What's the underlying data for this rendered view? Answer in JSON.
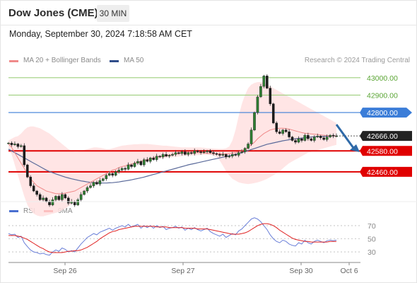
{
  "header": {
    "title": "Dow Jones (CME)",
    "timeframe": "30 MIN",
    "datetime": "Monday, September 30, 2024 7:18:58 AM CET"
  },
  "legend": {
    "ma20_bb": "MA 20 + Bollinger Bands",
    "ma50": "MA 50",
    "credit": "Research © 2024 Trading Central",
    "rsi": "RSI",
    "ma9": "9MA"
  },
  "colors": {
    "ma20": "#f08a8a",
    "bollinger_fill": "#ffe0e0",
    "ma50": "#5a6a9a",
    "resistance_green": "#9dcf7e",
    "pivot_blue": "#3b7dd8",
    "support_red": "#e00000",
    "last_price": "#222222",
    "candle": "#2e7d32",
    "rsi": "#6a7fd8",
    "rsi_ma": "#e02020",
    "arrow": "#2f6aa8"
  },
  "chart_data": [
    {
      "type": "candlestick",
      "title": "Dow Jones (CME)",
      "x_ticks": [
        "Sep 26",
        "Sep 27",
        "Sep 30",
        "Oct 6"
      ],
      "ylim": [
        42350,
        43060
      ],
      "levels": [
        {
          "value": 43000,
          "label": "43000.00",
          "kind": "resistance"
        },
        {
          "value": 42900,
          "label": "42900.00",
          "kind": "resistance"
        },
        {
          "value": 42800,
          "label": "42800.00",
          "kind": "pivot"
        },
        {
          "value": 42666,
          "label": "42666.00",
          "kind": "last"
        },
        {
          "value": 42580,
          "label": "42580.00",
          "kind": "support"
        },
        {
          "value": 42460,
          "label": "42460.00",
          "kind": "support"
        }
      ],
      "close": [
        42625,
        42615,
        42620,
        42605,
        42610,
        42500,
        42430,
        42380,
        42350,
        42330,
        42300,
        42310,
        42290,
        42270,
        42300,
        42320,
        42300,
        42330,
        42310,
        42280,
        42290,
        42270,
        42300,
        42330,
        42350,
        42370,
        42380,
        42400,
        42390,
        42410,
        42420,
        42440,
        42450,
        42440,
        42460,
        42470,
        42480,
        42475,
        42500,
        42490,
        42510,
        42520,
        42500,
        42530,
        42520,
        42540,
        42530,
        42550,
        42545,
        42560,
        42550,
        42555,
        42560,
        42570,
        42565,
        42575,
        42560,
        42570,
        42565,
        42580,
        42575,
        42570,
        42575,
        42580,
        42570,
        42565,
        42560,
        42555,
        42560,
        42545,
        42550,
        42560,
        42555,
        42570,
        42575,
        42595,
        42620,
        42700,
        42800,
        42890,
        42950,
        43010,
        42940,
        42850,
        42740,
        42690,
        42680,
        42700,
        42690,
        42660,
        42640,
        42630,
        42650,
        42640,
        42670,
        42650,
        42640,
        42660,
        42665,
        42655,
        42645,
        42660,
        42670,
        42665,
        42666
      ],
      "ma20": [
        42620,
        42600,
        42570,
        42540,
        42510,
        42480,
        42450,
        42420,
        42400,
        42380,
        42370,
        42360,
        42350,
        42345,
        42340,
        42335,
        42335,
        42335,
        42338,
        42342,
        42346,
        42350,
        42360,
        42370,
        42380,
        42390,
        42400,
        42410,
        42420,
        42430,
        42440,
        42450,
        42460,
        42470,
        42475,
        42485,
        42490,
        42495,
        42500,
        42505,
        42510,
        42515,
        42520,
        42525,
        42530,
        42535,
        42540,
        42545,
        42548,
        42550,
        42553,
        42556,
        42560,
        42562,
        42565,
        42567,
        42570,
        42570,
        42570,
        42570,
        42570,
        42570,
        42568,
        42566,
        42565,
        42564,
        42563,
        42563,
        42563,
        42563,
        42565,
        42567,
        42570,
        42575,
        42580,
        42590,
        42600,
        42615,
        42630,
        42650,
        42665,
        42680,
        42690,
        42700,
        42705,
        42708,
        42710,
        42710,
        42708,
        42705,
        42700,
        42695,
        42690,
        42685,
        42682,
        42680,
        42678,
        42676,
        42674,
        42672,
        42670,
        42668,
        42667,
        42666,
        42665
      ],
      "bollinger_upper": [
        42640,
        42650,
        42660,
        42665,
        42680,
        42700,
        42715,
        42720,
        42720,
        42715,
        42710,
        42700,
        42690,
        42680,
        42665,
        42650,
        42635,
        42620,
        42605,
        42590,
        42580,
        42575,
        42575,
        42580,
        42585,
        42590,
        42595,
        42600,
        42600,
        42598,
        42595,
        42590,
        42590,
        42595,
        42600,
        42605,
        42610,
        42612,
        42615,
        42616,
        42618,
        42618,
        42620,
        42620,
        42620,
        42618,
        42616,
        42614,
        42612,
        42610,
        42610,
        42608,
        42606,
        42604,
        42602,
        42600,
        42600,
        42600,
        42600,
        42600,
        42600,
        42600,
        42598,
        42596,
        42595,
        42594,
        42593,
        42592,
        42592,
        42595,
        42605,
        42640,
        42700,
        42780,
        42850,
        42900,
        42940,
        42960,
        42970,
        42975,
        42975,
        42970,
        42960,
        42950,
        42940,
        42930,
        42920,
        42910,
        42900,
        42890,
        42880,
        42870,
        42860,
        42850,
        42840,
        42830,
        42820,
        42810,
        42800,
        42790,
        42780,
        42770,
        42760,
        42750,
        42740
      ],
      "bollinger_lower": [
        42600,
        42560,
        42500,
        42440,
        42380,
        42320,
        42270,
        42240,
        42220,
        42210,
        42205,
        42205,
        42210,
        42215,
        42220,
        42225,
        42230,
        42240,
        42250,
        42262,
        42275,
        42290,
        42305,
        42320,
        42335,
        42350,
        42365,
        42380,
        42395,
        42410,
        42420,
        42430,
        42440,
        42450,
        42460,
        42470,
        42478,
        42485,
        42490,
        42495,
        42500,
        42505,
        42510,
        42515,
        42520,
        42525,
        42530,
        42533,
        42536,
        42538,
        42540,
        42542,
        42544,
        42546,
        42548,
        42550,
        42552,
        42553,
        42554,
        42555,
        42556,
        42557,
        42558,
        42558,
        42558,
        42555,
        42545,
        42525,
        42495,
        42465,
        42440,
        42420,
        42410,
        42400,
        42395,
        42392,
        42390,
        42392,
        42396,
        42400,
        42405,
        42412,
        42420,
        42430,
        42440,
        42452,
        42465,
        42480,
        42495,
        42510,
        42520,
        42530,
        42540,
        42550,
        42560,
        42570,
        42575,
        42580,
        42585,
        42590,
        42595,
        42600,
        42605,
        42610,
        42615
      ],
      "ma50": [
        42590,
        42580,
        42570,
        42560,
        42550,
        42540,
        42530,
        42520,
        42510,
        42500,
        42490,
        42480,
        42470,
        42462,
        42455,
        42448,
        42442,
        42436,
        42430,
        42425,
        42420,
        42416,
        42412,
        42408,
        42405,
        42402,
        42400,
        42398,
        42397,
        42396,
        42396,
        42396,
        42397,
        42398,
        42400,
        42402,
        42405,
        42408,
        42411,
        42414,
        42418,
        42422,
        42426,
        42430,
        42435,
        42440,
        42445,
        42450,
        42455,
        42460,
        42465,
        42470,
        42475,
        42480,
        42485,
        42490,
        42495,
        42500,
        42504,
        42508,
        42512,
        42516,
        42520,
        42524,
        42528,
        42532,
        42536,
        42540,
        42544,
        42548,
        42552,
        42556,
        42560,
        42565,
        42570,
        42576,
        42582,
        42588,
        42594,
        42600,
        42606,
        42612,
        42618,
        42622,
        42626,
        42630,
        42634,
        42638,
        42641,
        42644,
        42647,
        42650,
        42652,
        42654,
        42656,
        42658,
        42660,
        42661,
        42662,
        42663,
        42664,
        42665,
        42666,
        42666,
        42666
      ]
    },
    {
      "type": "line",
      "title": "RSI",
      "y_ticks": [
        70,
        50,
        30
      ],
      "ylim": [
        15,
        85
      ],
      "series": [
        {
          "name": "RSI",
          "values": [
            58,
            56,
            57,
            52,
            54,
            44,
            38,
            33,
            30,
            29,
            27,
            28,
            26,
            25,
            30,
            33,
            31,
            36,
            34,
            30,
            32,
            30,
            36,
            42,
            47,
            52,
            55,
            58,
            56,
            60,
            62,
            64,
            66,
            63,
            66,
            68,
            70,
            68,
            72,
            68,
            70,
            72,
            66,
            70,
            67,
            70,
            66,
            70,
            67,
            69,
            64,
            66,
            67,
            69,
            66,
            68,
            63,
            66,
            64,
            67,
            64,
            62,
            64,
            66,
            61,
            58,
            56,
            54,
            57,
            52,
            55,
            58,
            56,
            62,
            65,
            70,
            75,
            80,
            82,
            80,
            76,
            70,
            64,
            56,
            50,
            46,
            44,
            48,
            46,
            42,
            40,
            39,
            44,
            42,
            48,
            44,
            42,
            46,
            48,
            46,
            44,
            47,
            48,
            47,
            48
          ]
        },
        {
          "name": "9MA",
          "values": [
            55,
            55,
            55,
            54,
            53,
            51,
            49,
            46,
            43,
            40,
            37,
            35,
            32,
            30,
            29,
            29,
            29,
            29,
            30,
            31,
            31,
            32,
            32,
            33,
            35,
            37,
            40,
            43,
            46,
            50,
            53,
            56,
            59,
            61,
            62,
            64,
            65,
            66,
            67,
            68,
            69,
            69,
            69,
            69,
            69,
            69,
            69,
            68,
            68,
            68,
            68,
            67,
            67,
            67,
            67,
            67,
            66,
            66,
            66,
            66,
            65,
            65,
            65,
            65,
            64,
            63,
            62,
            61,
            60,
            59,
            58,
            57,
            57,
            57,
            58,
            59,
            61,
            64,
            67,
            70,
            72,
            73,
            73,
            72,
            70,
            67,
            63,
            60,
            57,
            54,
            51,
            49,
            48,
            47,
            46,
            46,
            45,
            45,
            45,
            45,
            45,
            45,
            46,
            46,
            46
          ]
        }
      ]
    }
  ]
}
